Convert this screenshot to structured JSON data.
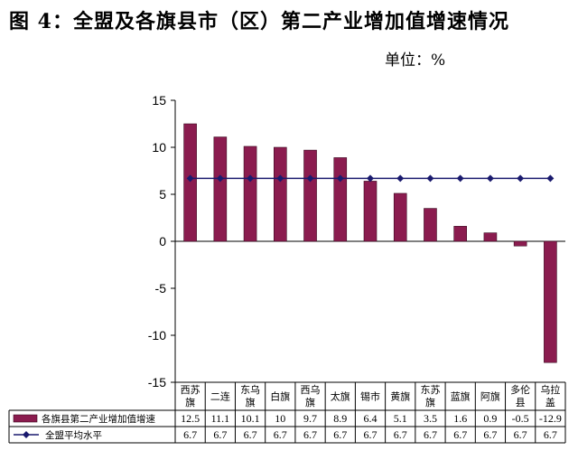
{
  "title": "图 4：全盟及各旗县市（区）第二产业增加值增速情况",
  "unit": "单位：%",
  "chart_data": {
    "type": "bar",
    "title": "图 4：全盟及各旗县市（区）第二产业增加值增速情况",
    "xlabel": "",
    "ylabel": "",
    "ylim": [
      -15,
      15
    ],
    "yticks": [
      "15",
      "10",
      "5",
      "0",
      "-5",
      "-10",
      "-15"
    ],
    "ytick_values": [
      15,
      10,
      5,
      0,
      -5,
      -10,
      -15
    ],
    "categories": [
      [
        "西苏",
        "旗"
      ],
      [
        "二连"
      ],
      [
        "东乌",
        "旗"
      ],
      [
        "白旗"
      ],
      [
        "西乌",
        "旗"
      ],
      [
        "太旗"
      ],
      [
        "锡市"
      ],
      [
        "黄旗"
      ],
      [
        "东苏",
        "旗"
      ],
      [
        "蓝旗"
      ],
      [
        "阿旗"
      ],
      [
        "多伦",
        "县"
      ],
      [
        "乌拉",
        "盖"
      ]
    ],
    "series": [
      {
        "name": "各旗县第二产业增加值增速",
        "kind": "bar",
        "color": "#8B1C4F",
        "values": [
          12.5,
          11.1,
          10.1,
          10,
          9.7,
          8.9,
          6.4,
          5.1,
          3.5,
          1.6,
          0.9,
          -0.5,
          -12.9
        ],
        "labels": [
          "12.5",
          "11.1",
          "10.1",
          "10",
          "9.7",
          "8.9",
          "6.4",
          "5.1",
          "3.5",
          "1.6",
          "0.9",
          "-0.5",
          "-12.9"
        ]
      },
      {
        "name": "全盟平均水平",
        "kind": "line",
        "color": "#1A1A6E",
        "values": [
          6.7,
          6.7,
          6.7,
          6.7,
          6.7,
          6.7,
          6.7,
          6.7,
          6.7,
          6.7,
          6.7,
          6.7,
          6.7
        ],
        "labels": [
          "6.7",
          "6.7",
          "6.7",
          "6.7",
          "6.7",
          "6.7",
          "6.7",
          "6.7",
          "6.7",
          "6.7",
          "6.7",
          "6.7",
          "6.7"
        ]
      }
    ],
    "legend_position": "data-table",
    "grid": false
  }
}
